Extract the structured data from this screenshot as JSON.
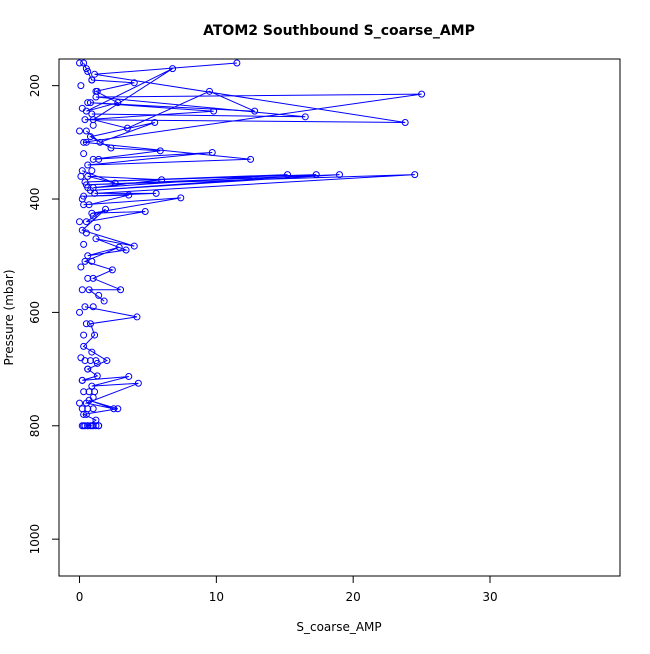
{
  "chart_data": {
    "type": "line",
    "title": "ATOM2 Southbound S_coarse_AMP",
    "xlabel": "S_coarse_AMP",
    "ylabel": "Pressure (mbar)",
    "x_ticks": [
      0,
      10,
      20,
      30
    ],
    "y_ticks": [
      200,
      400,
      600,
      800,
      1000
    ],
    "xlim": [
      -1.5,
      39.5
    ],
    "ylim": [
      1065,
      153
    ],
    "y_reversed": true,
    "marker": "open-circle",
    "line_color": "#0000ff",
    "grid": false,
    "legend": "none",
    "series": [
      {
        "x": [
          0.3,
          0.6,
          0.9,
          4.0,
          1.2,
          2.8,
          0.5,
          6.8,
          1.0,
          3.5,
          9.5,
          12.8,
          0.8,
          9.8,
          0.4,
          23.8,
          1.1,
          11.5
        ],
        "y": [
          160,
          175,
          190,
          195,
          210,
          230,
          245,
          170,
          260,
          275,
          210,
          245,
          230,
          245,
          260,
          265,
          180,
          160
        ]
      },
      {
        "x": [
          0.5,
          1.5,
          5.5,
          0.8,
          2.3,
          5.9,
          1.0,
          9.7,
          0.6,
          12.5,
          0.3,
          25.0,
          1.2,
          16.5,
          0.9
        ],
        "y": [
          280,
          300,
          265,
          290,
          310,
          315,
          330,
          318,
          340,
          330,
          300,
          215,
          220,
          255,
          250
        ]
      },
      {
        "x": [
          0.2,
          2.6,
          0.6,
          6.0,
          1.0,
          15.2,
          0.4,
          17.3,
          0.8,
          19.0,
          0.5,
          24.5,
          1.1,
          5.6,
          0.3,
          3.6,
          0.7
        ],
        "y": [
          350,
          372,
          360,
          366,
          380,
          357,
          370,
          357,
          385,
          357,
          375,
          357,
          390,
          390,
          395,
          393,
          410
        ]
      },
      {
        "x": [
          0.3,
          7.4,
          0.9,
          4.8,
          0.5,
          1.9,
          0.2,
          4.0,
          1.2,
          3.4,
          0.6,
          2.9,
          0.4,
          2.4,
          1.0,
          3.0,
          0.7,
          1.8
        ],
        "y": [
          410,
          398,
          425,
          422,
          440,
          418,
          455,
          483,
          470,
          490,
          500,
          485,
          510,
          525,
          540,
          560,
          560,
          580
        ]
      },
      {
        "x": [
          0.4,
          4.2,
          0.8,
          1.1,
          0.3,
          2.0,
          0.6,
          1.3,
          0.2,
          3.6,
          0.9,
          4.3,
          0.5,
          2.5,
          0.7,
          2.8,
          0.3,
          1.2,
          0.6,
          0.9
        ],
        "y": [
          590,
          608,
          620,
          640,
          660,
          685,
          700,
          712,
          720,
          713,
          730,
          725,
          760,
          770,
          755,
          770,
          780,
          790,
          800,
          800
        ]
      }
    ],
    "profile_points": [
      [
        0.0,
        160
      ],
      [
        0.1,
        200
      ],
      [
        0.2,
        240
      ],
      [
        0.0,
        280
      ],
      [
        0.3,
        320
      ],
      [
        0.1,
        360
      ],
      [
        0.2,
        400
      ],
      [
        0.0,
        440
      ],
      [
        0.3,
        480
      ],
      [
        0.1,
        520
      ],
      [
        0.2,
        560
      ],
      [
        0.0,
        600
      ],
      [
        0.3,
        640
      ],
      [
        0.1,
        680
      ],
      [
        0.2,
        720
      ],
      [
        0.0,
        760
      ],
      [
        0.3,
        800
      ],
      [
        0.5,
        170
      ],
      [
        0.6,
        230
      ],
      [
        0.5,
        300
      ],
      [
        0.6,
        380
      ],
      [
        0.5,
        460
      ],
      [
        0.6,
        540
      ],
      [
        0.5,
        620
      ],
      [
        0.6,
        700
      ],
      [
        0.5,
        780
      ],
      [
        0.9,
        190
      ],
      [
        1.0,
        270
      ],
      [
        0.9,
        350
      ],
      [
        1.0,
        430
      ],
      [
        0.9,
        510
      ],
      [
        1.0,
        590
      ],
      [
        0.9,
        670
      ],
      [
        1.0,
        750
      ],
      [
        1.3,
        210
      ],
      [
        1.4,
        330
      ],
      [
        1.3,
        450
      ],
      [
        1.4,
        570
      ],
      [
        1.3,
        690
      ],
      [
        1.4,
        800
      ],
      [
        0.2,
        800
      ],
      [
        0.4,
        800
      ],
      [
        0.6,
        800
      ],
      [
        0.8,
        800
      ],
      [
        1.0,
        800
      ],
      [
        1.2,
        800
      ],
      [
        1.4,
        800
      ],
      [
        0.3,
        740
      ],
      [
        0.7,
        740
      ],
      [
        1.1,
        740
      ],
      [
        0.4,
        685
      ],
      [
        0.8,
        685
      ],
      [
        1.2,
        685
      ],
      [
        0.2,
        770
      ],
      [
        0.6,
        770
      ],
      [
        1.0,
        770
      ]
    ]
  }
}
